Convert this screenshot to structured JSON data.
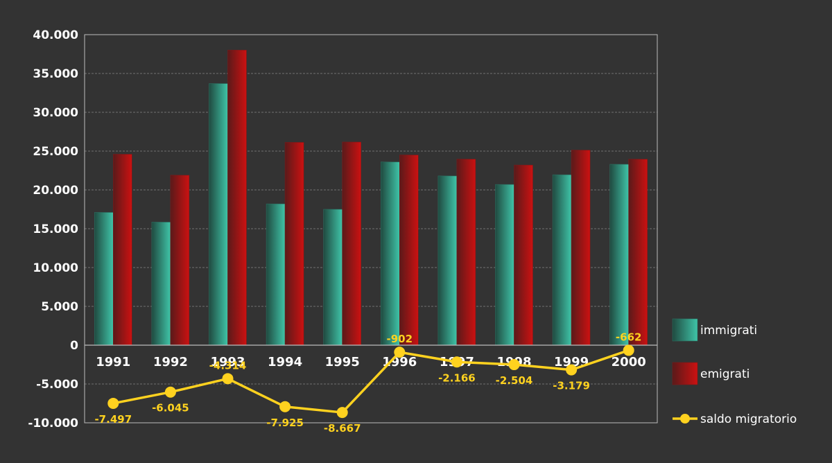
{
  "chart_data": {
    "type": "bar",
    "categories": [
      "1991",
      "1992",
      "1993",
      "1994",
      "1995",
      "1996",
      "1997",
      "1998",
      "1999",
      "2000"
    ],
    "series": [
      {
        "name": "immigrati",
        "type": "bar",
        "color": "#3fc4a8",
        "values": [
          17100,
          15850,
          33700,
          18200,
          17500,
          23600,
          21800,
          20700,
          21950,
          23300
        ]
      },
      {
        "name": "emigrati",
        "type": "bar",
        "color": "#cc1111",
        "values": [
          24597,
          21895,
          38014,
          26125,
          26167,
          24502,
          23966,
          23204,
          25129,
          23962
        ]
      },
      {
        "name": "saldo migratorio",
        "type": "line",
        "color": "#ffd21f",
        "values": [
          -7497,
          -6045,
          -4314,
          -7925,
          -8667,
          -902,
          -2166,
          -2504,
          -3179,
          -662
        ],
        "labels": [
          "-7.497",
          "-6.045",
          "-4.314",
          "-7.925",
          "-8.667",
          "-902",
          "-2.166",
          "-2.504",
          "-3.179",
          "-662"
        ]
      }
    ],
    "ylim": [
      -10000,
      40000
    ],
    "yticks": [
      40000,
      35000,
      30000,
      25000,
      20000,
      15000,
      10000,
      5000,
      0,
      -5000,
      -10000
    ],
    "ytick_labels": [
      "40.000",
      "35.000",
      "30.000",
      "25.000",
      "20.000",
      "15.000",
      "10.000",
      "5.000",
      "0",
      "-5.000",
      "-10.000"
    ],
    "grid": true,
    "legend_position": "right",
    "colors": {
      "background": "#333333",
      "text": "#ffffff",
      "label": "#ffd21f",
      "grid": "#888888"
    }
  }
}
